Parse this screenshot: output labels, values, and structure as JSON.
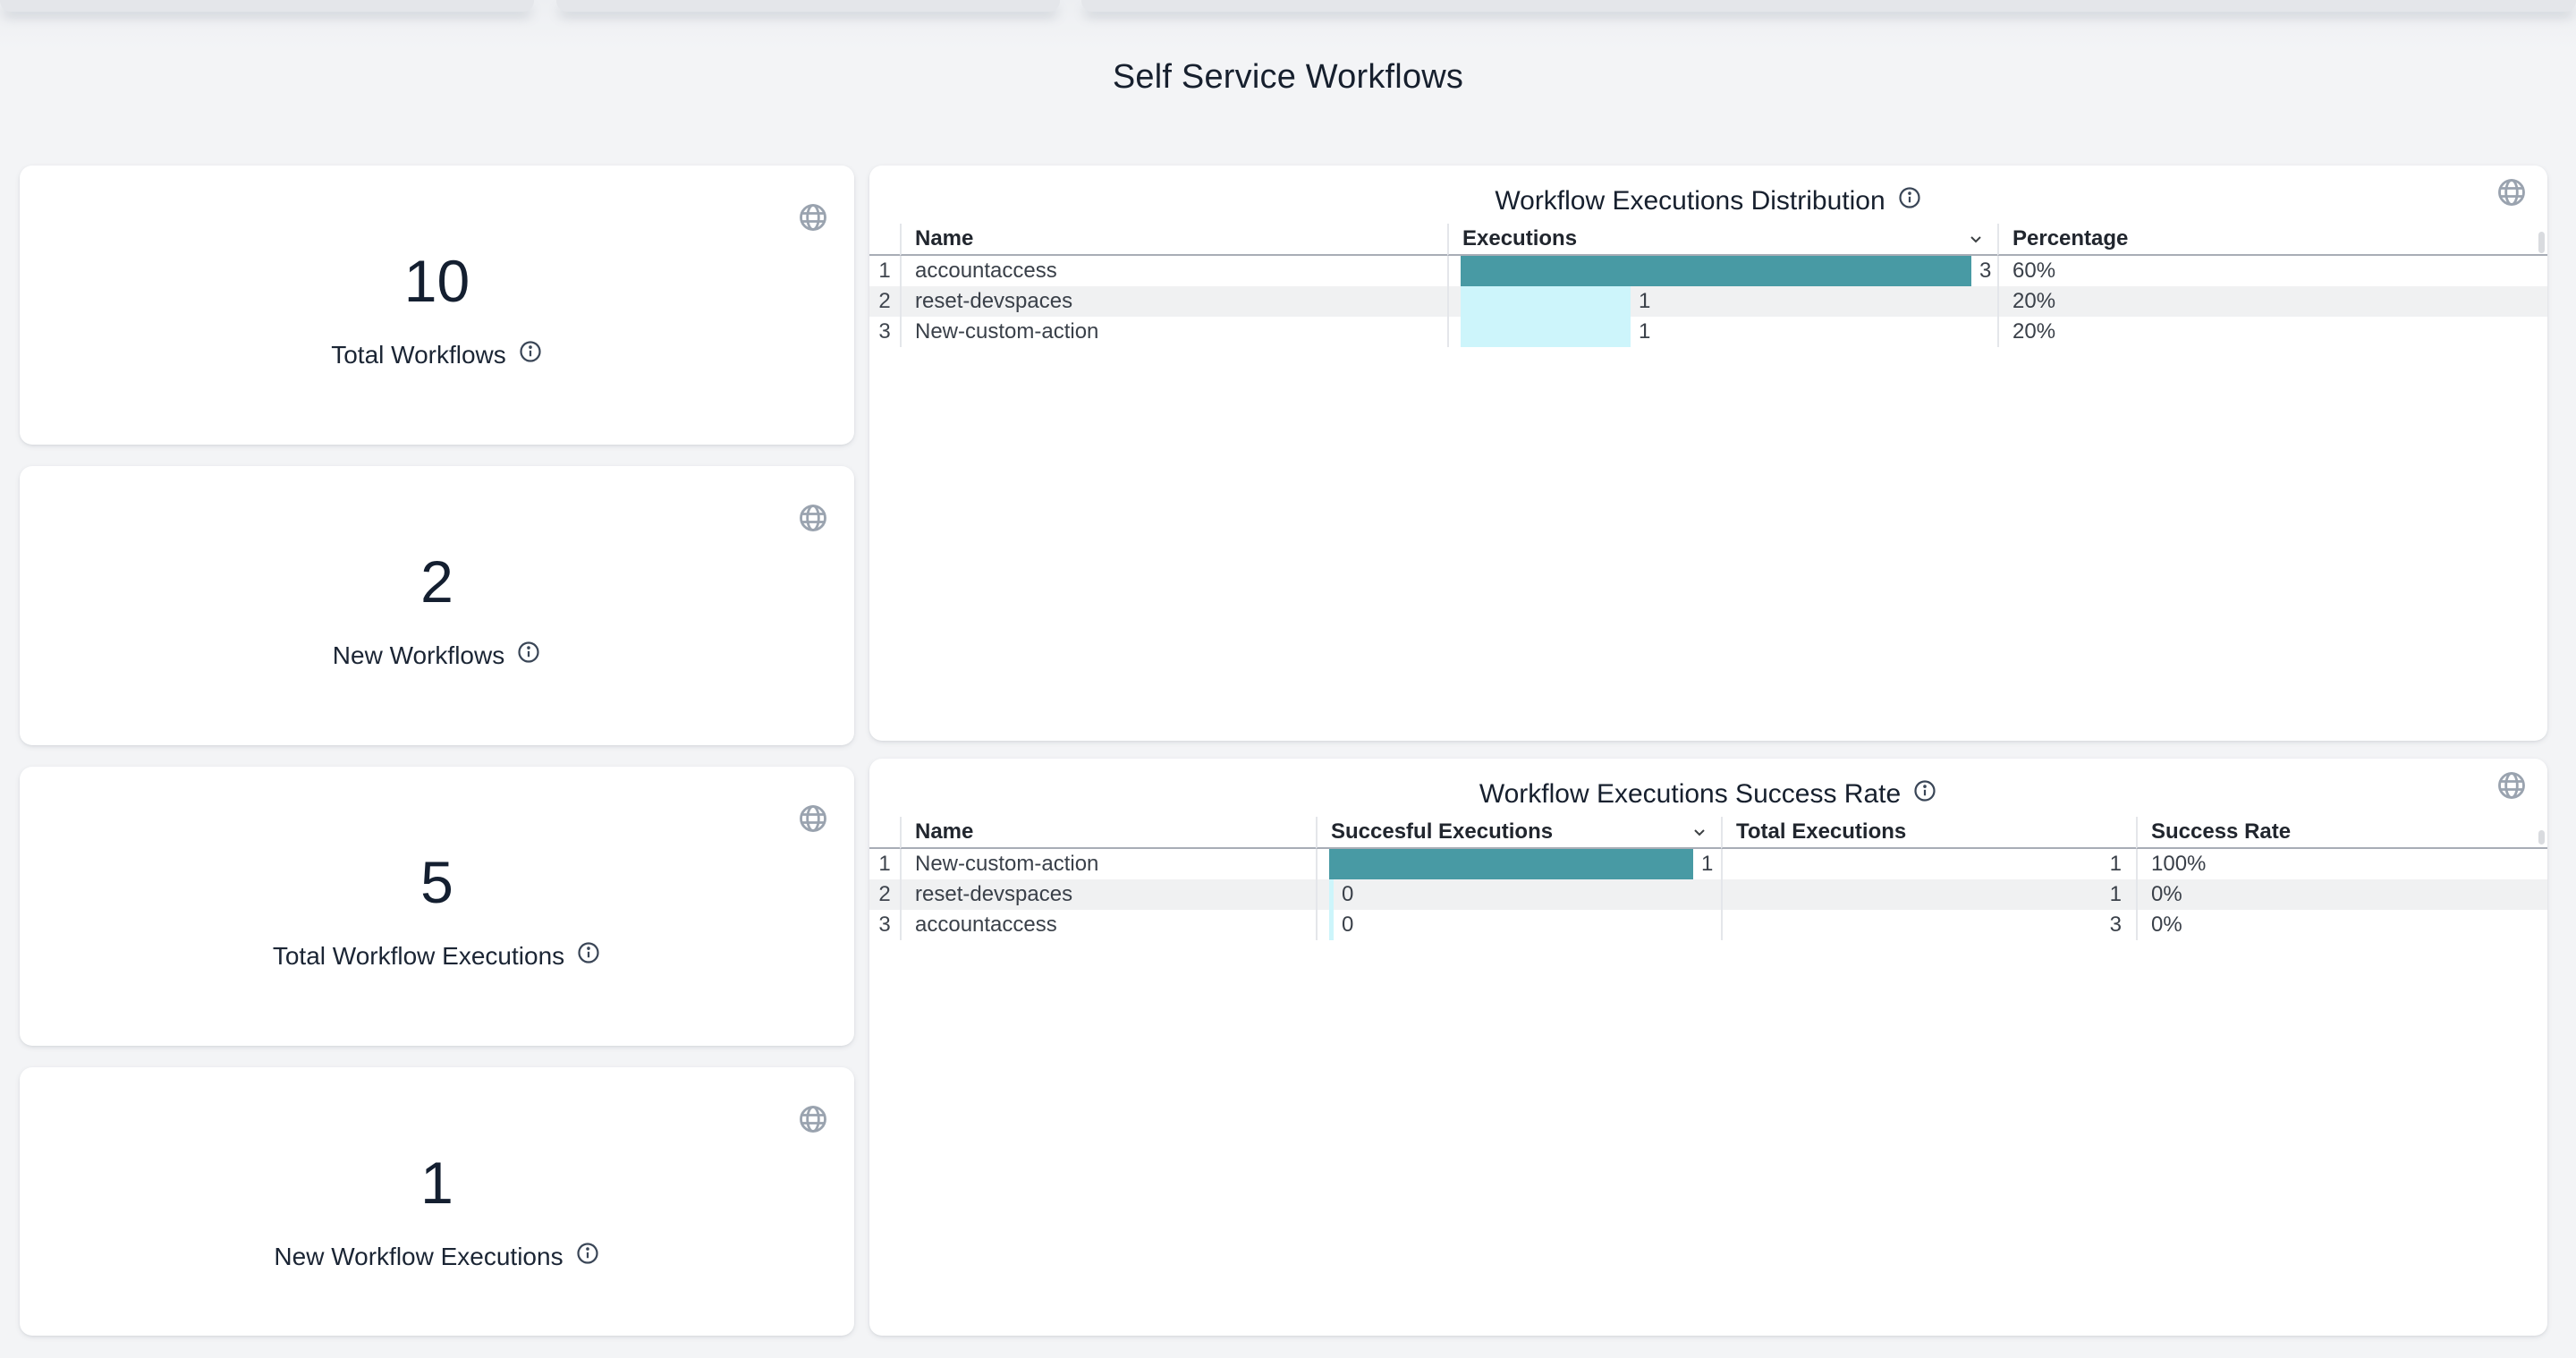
{
  "page": {
    "title": "Self Service Workflows"
  },
  "stat_cards": [
    {
      "value": "10",
      "label": "Total Workflows"
    },
    {
      "value": "2",
      "label": "New Workflows"
    },
    {
      "value": "5",
      "label": "Total Workflow Executions"
    },
    {
      "value": "1",
      "label": "New Workflow Executions"
    }
  ],
  "tables": [
    {
      "title": "Workflow Executions Distribution",
      "columns": [
        {
          "label": "",
          "type": "index"
        },
        {
          "label": "Name",
          "type": "text"
        },
        {
          "label": "Executions",
          "type": "bar",
          "sortable": true
        },
        {
          "label": "Percentage",
          "type": "text"
        }
      ],
      "bar_max": 3,
      "rows": [
        [
          "1",
          "accountaccess",
          3,
          "60%"
        ],
        [
          "2",
          "reset-devspaces",
          1,
          "20%"
        ],
        [
          "3",
          "New-custom-action",
          1,
          "20%"
        ]
      ]
    },
    {
      "title": "Workflow Executions Success Rate",
      "columns": [
        {
          "label": "",
          "type": "index"
        },
        {
          "label": "Name",
          "type": "text"
        },
        {
          "label": "Succesful Executions",
          "type": "bar",
          "sortable": true
        },
        {
          "label": "Total Executions",
          "type": "number"
        },
        {
          "label": "Success Rate",
          "type": "text"
        }
      ],
      "bar_max": 1,
      "rows": [
        [
          "1",
          "New-custom-action",
          1,
          "1",
          "100%"
        ],
        [
          "2",
          "reset-devspaces",
          0,
          "1",
          "0%"
        ],
        [
          "3",
          "accountaccess",
          0,
          "3",
          "0%"
        ]
      ]
    }
  ],
  "chart_data": [
    {
      "type": "bar",
      "title": "Workflow Executions Distribution",
      "categories": [
        "accountaccess",
        "reset-devspaces",
        "New-custom-action"
      ],
      "values": [
        3,
        1,
        1
      ],
      "percentages": [
        "60%",
        "20%",
        "20%"
      ],
      "xlabel": "Executions",
      "xlim": [
        0,
        3
      ]
    },
    {
      "type": "bar",
      "title": "Workflow Executions Success Rate",
      "categories": [
        "New-custom-action",
        "reset-devspaces",
        "accountaccess"
      ],
      "series": [
        {
          "name": "Succesful Executions",
          "values": [
            1,
            0,
            0
          ]
        },
        {
          "name": "Total Executions",
          "values": [
            1,
            1,
            3
          ]
        }
      ],
      "success_rates": [
        "100%",
        "0%",
        "0%"
      ],
      "xlim": [
        0,
        1
      ]
    }
  ],
  "colors": {
    "bar_teal": "#489aa4",
    "bar_cyan": "#cdf5fb",
    "row_stripe": "#f0f1f2",
    "icon_gray": "#9aa3af",
    "navy": "#17202e"
  }
}
